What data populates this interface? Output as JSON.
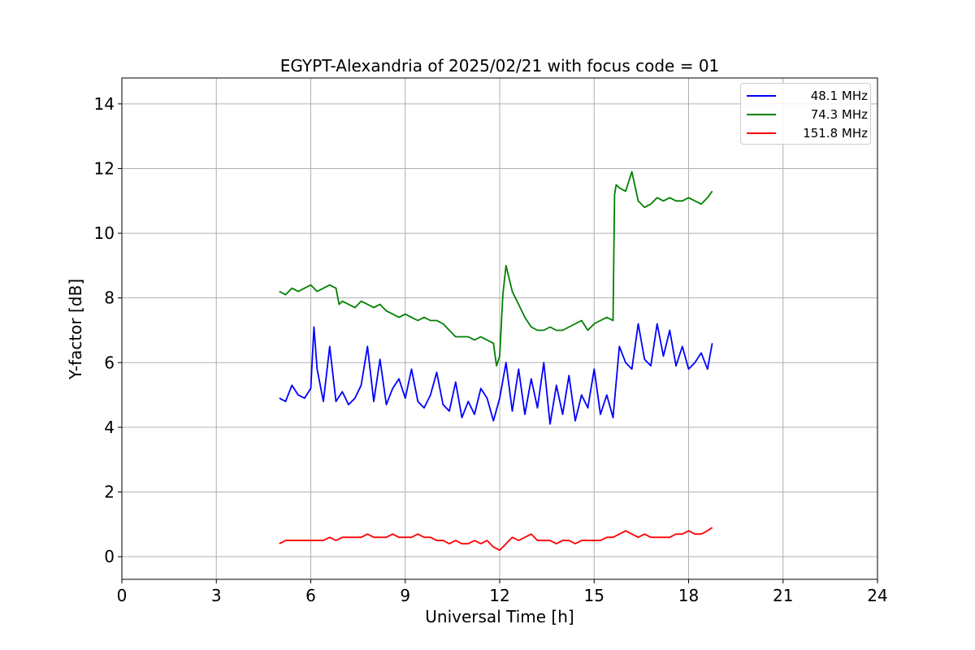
{
  "chart_data": {
    "type": "line",
    "title": "EGYPT-Alexandria of 2025/02/21 with focus code = 01",
    "xlabel": "Universal Time [h]",
    "ylabel": "Y-factor [dB]",
    "xlim": [
      0,
      24
    ],
    "ylim": [
      -0.7,
      14.8
    ],
    "xticks": [
      0,
      3,
      6,
      9,
      12,
      15,
      18,
      21,
      24
    ],
    "yticks": [
      0,
      2,
      4,
      6,
      8,
      10,
      12,
      14
    ],
    "grid": true,
    "legend_position": "top-right",
    "series": [
      {
        "name": "  48.1 MHz",
        "color": "#0000ff",
        "x": [
          5.0,
          5.2,
          5.4,
          5.6,
          5.8,
          6.0,
          6.1,
          6.2,
          6.4,
          6.6,
          6.8,
          7.0,
          7.2,
          7.4,
          7.6,
          7.8,
          8.0,
          8.2,
          8.4,
          8.6,
          8.8,
          9.0,
          9.2,
          9.4,
          9.6,
          9.8,
          10.0,
          10.2,
          10.4,
          10.6,
          10.8,
          11.0,
          11.2,
          11.4,
          11.6,
          11.8,
          12.0,
          12.2,
          12.4,
          12.6,
          12.8,
          13.0,
          13.2,
          13.4,
          13.6,
          13.8,
          14.0,
          14.2,
          14.4,
          14.6,
          14.8,
          15.0,
          15.2,
          15.4,
          15.6,
          15.8,
          16.0,
          16.2,
          16.4,
          16.6,
          16.8,
          17.0,
          17.2,
          17.4,
          17.6,
          17.8,
          18.0,
          18.2,
          18.4,
          18.6,
          18.75
        ],
        "y": [
          4.9,
          4.8,
          5.3,
          5.0,
          4.9,
          5.2,
          7.1,
          5.8,
          4.8,
          6.5,
          4.8,
          5.1,
          4.7,
          4.9,
          5.3,
          6.5,
          4.8,
          6.1,
          4.7,
          5.2,
          5.5,
          4.9,
          5.8,
          4.8,
          4.6,
          5.0,
          5.7,
          4.7,
          4.5,
          5.4,
          4.3,
          4.8,
          4.4,
          5.2,
          4.9,
          4.2,
          4.9,
          6.0,
          4.5,
          5.8,
          4.4,
          5.5,
          4.6,
          6.0,
          4.1,
          5.3,
          4.4,
          5.6,
          4.2,
          5.0,
          4.6,
          5.8,
          4.4,
          5.0,
          4.3,
          6.5,
          6.0,
          5.8,
          7.2,
          6.1,
          5.9,
          7.2,
          6.2,
          7.0,
          5.9,
          6.5,
          5.8,
          6.0,
          6.3,
          5.8,
          6.6
        ]
      },
      {
        "name": "  74.3 MHz",
        "color": "#008000",
        "x": [
          5.0,
          5.2,
          5.4,
          5.6,
          5.8,
          6.0,
          6.2,
          6.4,
          6.6,
          6.8,
          6.9,
          7.0,
          7.2,
          7.4,
          7.6,
          7.8,
          8.0,
          8.2,
          8.4,
          8.6,
          8.8,
          9.0,
          9.2,
          9.4,
          9.6,
          9.8,
          10.0,
          10.2,
          10.4,
          10.6,
          10.8,
          11.0,
          11.2,
          11.4,
          11.6,
          11.8,
          11.9,
          12.0,
          12.1,
          12.2,
          12.4,
          12.6,
          12.8,
          13.0,
          13.2,
          13.4,
          13.6,
          13.8,
          14.0,
          14.2,
          14.4,
          14.6,
          14.8,
          15.0,
          15.2,
          15.4,
          15.6,
          15.65,
          15.7,
          15.8,
          16.0,
          16.2,
          16.4,
          16.6,
          16.8,
          17.0,
          17.2,
          17.4,
          17.6,
          17.8,
          18.0,
          18.2,
          18.4,
          18.6,
          18.75
        ],
        "y": [
          8.2,
          8.1,
          8.3,
          8.2,
          8.3,
          8.4,
          8.2,
          8.3,
          8.4,
          8.3,
          7.8,
          7.9,
          7.8,
          7.7,
          7.9,
          7.8,
          7.7,
          7.8,
          7.6,
          7.5,
          7.4,
          7.5,
          7.4,
          7.3,
          7.4,
          7.3,
          7.3,
          7.2,
          7.0,
          6.8,
          6.8,
          6.8,
          6.7,
          6.8,
          6.7,
          6.6,
          5.9,
          6.2,
          8.1,
          9.0,
          8.2,
          7.8,
          7.4,
          7.1,
          7.0,
          7.0,
          7.1,
          7.0,
          7.0,
          7.1,
          7.2,
          7.3,
          7.0,
          7.2,
          7.3,
          7.4,
          7.3,
          11.2,
          11.5,
          11.4,
          11.3,
          11.9,
          11.0,
          10.8,
          10.9,
          11.1,
          11.0,
          11.1,
          11.0,
          11.0,
          11.1,
          11.0,
          10.9,
          11.1,
          11.3
        ]
      },
      {
        "name": "151.8 MHz",
        "color": "#ff0000",
        "x": [
          5.0,
          5.2,
          5.4,
          5.6,
          5.8,
          6.0,
          6.2,
          6.4,
          6.6,
          6.8,
          7.0,
          7.2,
          7.4,
          7.6,
          7.8,
          8.0,
          8.2,
          8.4,
          8.6,
          8.8,
          9.0,
          9.2,
          9.4,
          9.6,
          9.8,
          10.0,
          10.2,
          10.4,
          10.6,
          10.8,
          11.0,
          11.2,
          11.4,
          11.6,
          11.8,
          12.0,
          12.2,
          12.4,
          12.6,
          12.8,
          13.0,
          13.2,
          13.4,
          13.6,
          13.8,
          14.0,
          14.2,
          14.4,
          14.6,
          14.8,
          15.0,
          15.2,
          15.4,
          15.6,
          15.8,
          16.0,
          16.2,
          16.4,
          16.6,
          16.8,
          17.0,
          17.2,
          17.4,
          17.6,
          17.8,
          18.0,
          18.2,
          18.4,
          18.6,
          18.75
        ],
        "y": [
          0.4,
          0.5,
          0.5,
          0.5,
          0.5,
          0.5,
          0.5,
          0.5,
          0.6,
          0.5,
          0.6,
          0.6,
          0.6,
          0.6,
          0.7,
          0.6,
          0.6,
          0.6,
          0.7,
          0.6,
          0.6,
          0.6,
          0.7,
          0.6,
          0.6,
          0.5,
          0.5,
          0.4,
          0.5,
          0.4,
          0.4,
          0.5,
          0.4,
          0.5,
          0.3,
          0.2,
          0.4,
          0.6,
          0.5,
          0.6,
          0.7,
          0.5,
          0.5,
          0.5,
          0.4,
          0.5,
          0.5,
          0.4,
          0.5,
          0.5,
          0.5,
          0.5,
          0.6,
          0.6,
          0.7,
          0.8,
          0.7,
          0.6,
          0.7,
          0.6,
          0.6,
          0.6,
          0.6,
          0.7,
          0.7,
          0.8,
          0.7,
          0.7,
          0.8,
          0.9
        ]
      }
    ]
  }
}
